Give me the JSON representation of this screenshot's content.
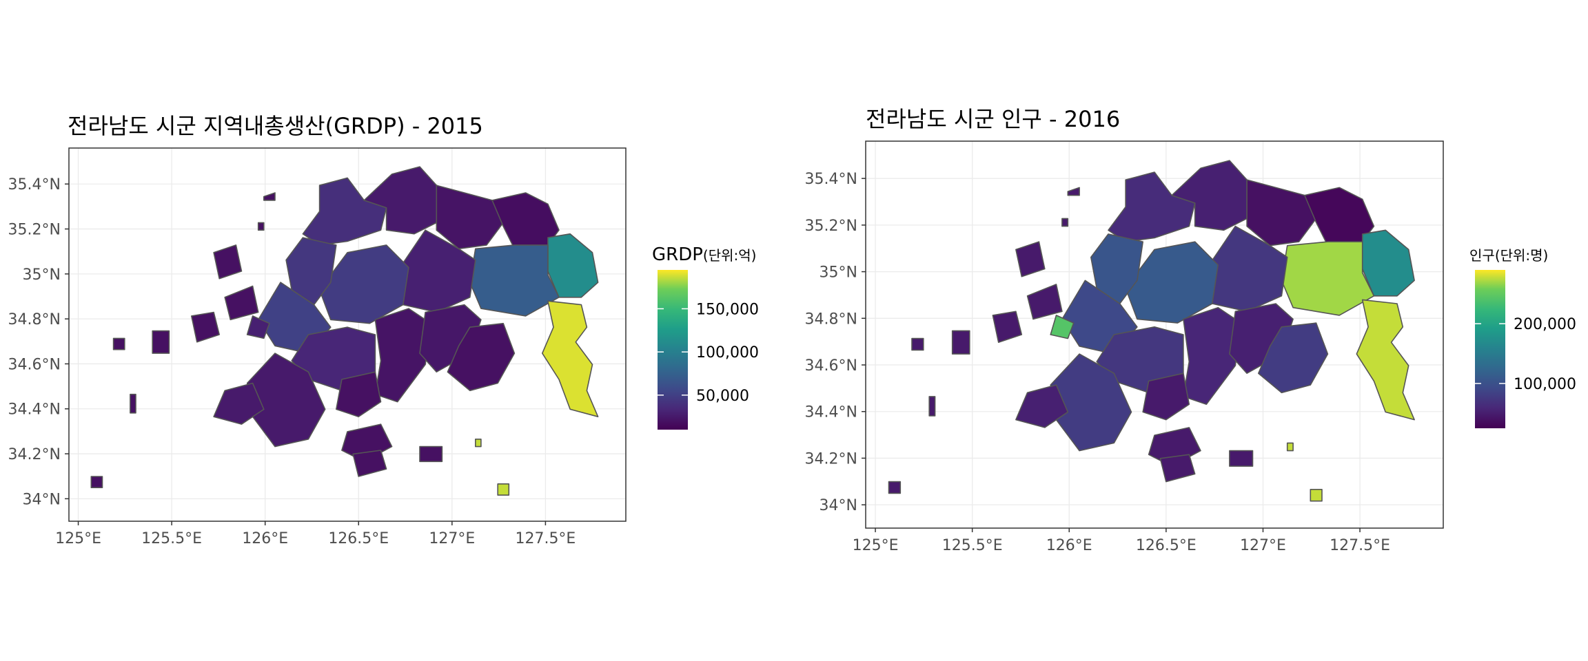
{
  "figure": {
    "panels": [
      {
        "title": "전라남도 시군 지역내총생산(GRDP) - 2015",
        "legend": {
          "title_main": "GRDP",
          "title_unit": "(단위:억)",
          "labels": [
            "150,000",
            "100,000",
            "50,000"
          ],
          "values": [
            150000,
            100000,
            50000
          ],
          "range": [
            10000,
            195000
          ]
        },
        "x_ticks": [
          "125°E",
          "125.5°E",
          "126°E",
          "126.5°E",
          "127°E",
          "127.5°E"
        ],
        "y_ticks": [
          "35.4°N",
          "35.2°N",
          "35°N",
          "34.8°N",
          "34.6°N",
          "34.4°N",
          "34.2°N",
          "34°N"
        ]
      },
      {
        "title": "전라남도 시군 인구 - 2016",
        "legend": {
          "title_main": "인구",
          "title_unit": "(단위:명)",
          "labels": [
            "200,000",
            "100,000"
          ],
          "values": [
            200000,
            100000
          ],
          "range": [
            25000,
            290000
          ]
        },
        "x_ticks": [
          "125°E",
          "125.5°E",
          "126°E",
          "126.5°E",
          "127°E",
          "127.5°E"
        ],
        "y_ticks": [
          "35.4°N",
          "35.2°N",
          "35°N",
          "34.8°N",
          "34.6°N",
          "34.4°N",
          "34.2°N",
          "34°N"
        ]
      }
    ]
  },
  "chart_data": [
    {
      "type": "choropleth",
      "title": "전라남도 시군 지역내총생산(GRDP) - 2015",
      "legend_title": "GRDP(단위:억)",
      "colorscale": "viridis",
      "xlim": [
        124.95,
        127.93
      ],
      "ylim": [
        33.9,
        35.56
      ],
      "x_ticks": [
        125,
        125.5,
        126,
        126.5,
        127,
        127.5
      ],
      "y_ticks": [
        34,
        34.2,
        34.4,
        34.6,
        34.8,
        35,
        35.2,
        35.4
      ],
      "legend_ticks": [
        50000,
        100000,
        150000
      ]
    },
    {
      "type": "choropleth",
      "title": "전라남도 시군 인구 - 2016",
      "legend_title": "인구(단위:명)",
      "colorscale": "viridis",
      "xlim": [
        124.95,
        127.93
      ],
      "ylim": [
        33.9,
        35.56
      ],
      "x_ticks": [
        125,
        125.5,
        126,
        126.5,
        127,
        127.5
      ],
      "y_ticks": [
        34,
        34.2,
        34.4,
        34.6,
        34.8,
        35,
        35.2,
        35.4
      ],
      "legend_ticks": [
        100000,
        200000
      ]
    }
  ]
}
